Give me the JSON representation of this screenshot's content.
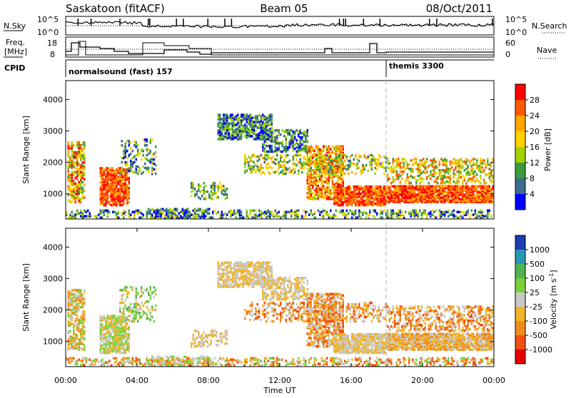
{
  "header": {
    "station": "Saskatoon (fitACF)",
    "beam": "Beam 05",
    "date": "08/Oct/2011"
  },
  "strips": {
    "nsky_label": "N.Sky",
    "nsearch_label": "N.Search",
    "nsky_ticks": [
      "10^5",
      "10^0"
    ],
    "nsearch_ticks": [
      "10^5",
      "10^0"
    ],
    "freq_label_1": "Freq.",
    "freq_label_2": "[MHz]",
    "freq_ticks": [
      "18",
      "8"
    ],
    "nave_label": "Nave",
    "nave_ticks": [
      "60",
      "0"
    ],
    "cpid_label": "CPID",
    "cpid_1": "normalsound (fast) 157",
    "cpid_2": "themis 3300"
  },
  "chart_data": [
    {
      "type": "heatmap",
      "name": "power-panel",
      "ylabel": "Slant Range [km]",
      "xlabel": "",
      "ylim": [
        200,
        4600
      ],
      "xlim": [
        0,
        24
      ],
      "yticks": [
        "1000",
        "2000",
        "3000",
        "4000"
      ],
      "colorbar": {
        "label": "Power [dB]",
        "ticks": [
          "28",
          "24",
          "20",
          "16",
          "12",
          "8",
          "4"
        ],
        "colors": [
          "#ff0000",
          "#ff5a00",
          "#ffa500",
          "#ffd200",
          "#a0d200",
          "#3c9b3c",
          "#3c6e8c",
          "#0000ff"
        ]
      }
    },
    {
      "type": "heatmap",
      "name": "velocity-panel",
      "ylabel": "Slant Range [km]",
      "xlabel": "Time UT",
      "ylim": [
        200,
        4600
      ],
      "xlim": [
        0,
        24
      ],
      "yticks": [
        "1000",
        "2000",
        "3000",
        "4000"
      ],
      "xticks": [
        "00:00",
        "04:00",
        "08:00",
        "12:00",
        "16:00",
        "20:00",
        "00:00"
      ],
      "colorbar": {
        "label": "Velocity [m s",
        "label_sup": "-1",
        "label_end": "]",
        "ticks": [
          "1000",
          "500",
          "100",
          "25",
          "-25",
          "-100",
          "-500",
          "-1000"
        ],
        "colors": [
          "#1e3cb4",
          "#2896b4",
          "#50b450",
          "#78d23c",
          "#c8c8c8",
          "#f0b428",
          "#f08c1e",
          "#f05014",
          "#e60000"
        ]
      }
    }
  ]
}
